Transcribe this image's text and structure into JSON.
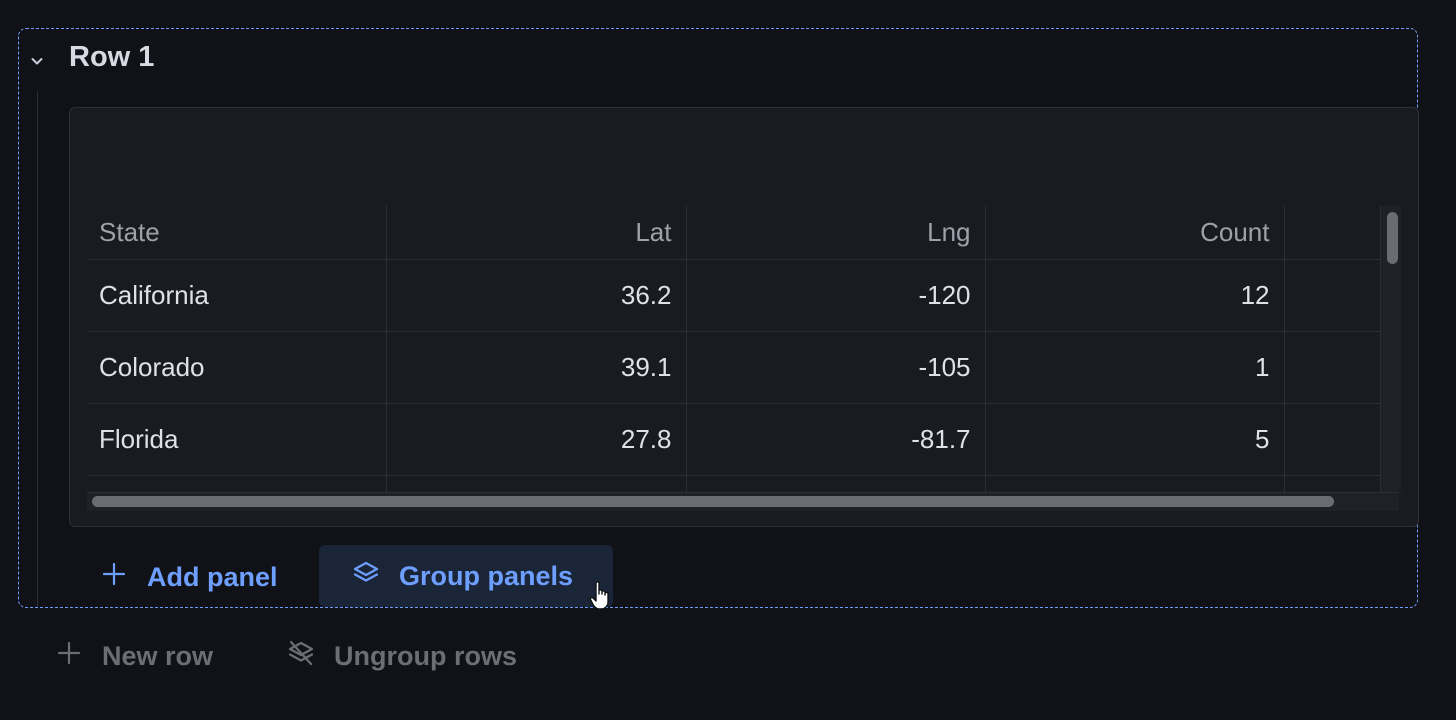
{
  "row": {
    "title": "Row 1",
    "collapse_icon": "chevron-down-icon"
  },
  "table": {
    "columns": [
      "State",
      "Lat",
      "Lng",
      "Count",
      ""
    ],
    "rows": [
      [
        "California",
        "36.2",
        "-120",
        "12",
        ""
      ],
      [
        "Colorado",
        "39.1",
        "-105",
        "1",
        ""
      ],
      [
        "Florida",
        "27.8",
        "-81.7",
        "5",
        ""
      ],
      [
        "",
        "",
        "",
        "",
        ""
      ]
    ]
  },
  "actions": {
    "add_panel": "Add panel",
    "group_panels": "Group panels",
    "new_row": "New row",
    "ungroup_rows": "Ungroup rows"
  },
  "icons": {
    "add": "plus-icon",
    "group": "layers-icon",
    "ungroup": "layers-slash-icon",
    "cursor": "hand-pointer-icon"
  },
  "colors": {
    "background": "#111217",
    "panel": "#181b1f",
    "accent": "#6e9fff",
    "muted": "#6c6e76"
  }
}
